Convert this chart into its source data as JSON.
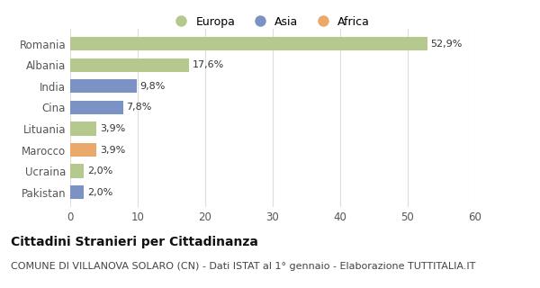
{
  "categories": [
    "Pakistan",
    "Ucraina",
    "Marocco",
    "Lituania",
    "Cina",
    "India",
    "Albania",
    "Romania"
  ],
  "values": [
    2.0,
    2.0,
    3.9,
    3.9,
    7.8,
    9.8,
    17.6,
    52.9
  ],
  "labels": [
    "2,0%",
    "2,0%",
    "3,9%",
    "3,9%",
    "7,8%",
    "9,8%",
    "17,6%",
    "52,9%"
  ],
  "continent": [
    "Asia",
    "Europa",
    "Africa",
    "Europa",
    "Asia",
    "Asia",
    "Europa",
    "Europa"
  ],
  "colors": {
    "Europa": "#b5c98e",
    "Asia": "#7b93c4",
    "Africa": "#e8a96a"
  },
  "legend_order": [
    "Europa",
    "Asia",
    "Africa"
  ],
  "title": "Cittadini Stranieri per Cittadinanza",
  "subtitle": "COMUNE DI VILLANOVA SOLARO (CN) - Dati ISTAT al 1° gennaio - Elaborazione TUTTITALIA.IT",
  "xlim": [
    0,
    60
  ],
  "xticks": [
    0,
    10,
    20,
    30,
    40,
    50,
    60
  ],
  "background_color": "#ffffff",
  "bar_area_color": "#ffffff",
  "grid_color": "#dddddd",
  "title_fontsize": 10,
  "subtitle_fontsize": 8,
  "label_fontsize": 8,
  "tick_fontsize": 8.5,
  "legend_fontsize": 9
}
